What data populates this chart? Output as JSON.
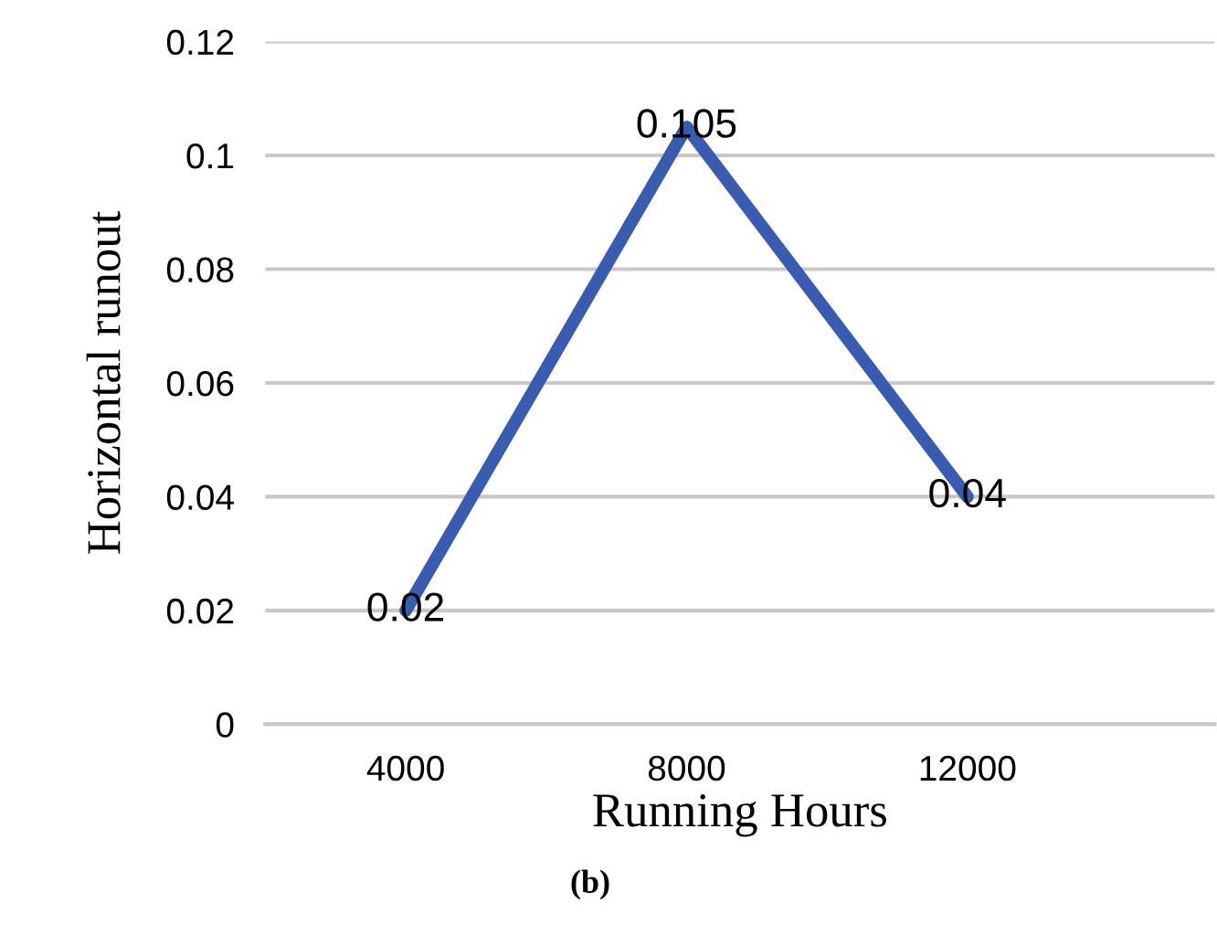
{
  "chart_data": {
    "type": "line",
    "xlabel": "Running Hours",
    "ylabel": "Horizontal runout",
    "categories": [
      "4000",
      "8000",
      "12000"
    ],
    "series": [
      {
        "color": "#3a5cb0",
        "values": [
          0.02,
          0.105,
          0.04
        ]
      }
    ],
    "ylim": [
      0,
      0.12
    ],
    "yticks": [
      0,
      0.02,
      0.04,
      0.06,
      0.08,
      {
        "value": 0.1,
        "label": "0.1"
      },
      0.12
    ],
    "grid": "y",
    "marker": "none",
    "line_style": "solid",
    "data_labels": true,
    "legend": false,
    "annotations": [
      "(b)"
    ]
  }
}
